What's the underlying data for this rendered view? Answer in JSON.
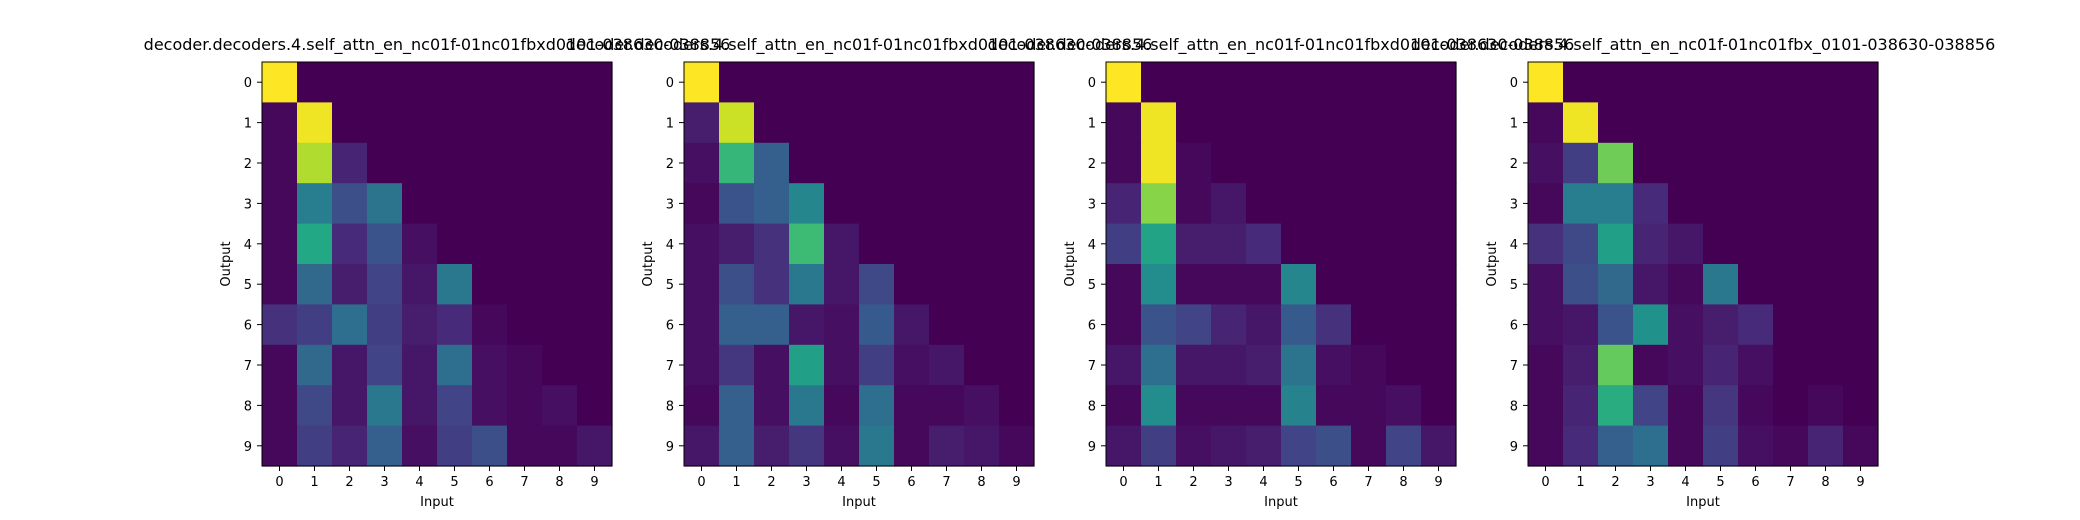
{
  "chart_data": [
    {
      "type": "heatmap",
      "title": "decoder.decoders.4.self_attn_en_nc01f-01nc01fbxd0101-038630-038856",
      "xlabel": "Input",
      "ylabel": "Output",
      "x_ticks": [
        "0",
        "1",
        "2",
        "3",
        "4",
        "5",
        "6",
        "7",
        "8",
        "9"
      ],
      "y_ticks": [
        "0",
        "1",
        "2",
        "3",
        "4",
        "5",
        "6",
        "7",
        "8",
        "9"
      ],
      "colormap": "viridis",
      "vmin": 0,
      "vmax": 1,
      "values": [
        [
          1.0,
          0.0,
          0.0,
          0.0,
          0.0,
          0.0,
          0.0,
          0.0,
          0.0,
          0.0
        ],
        [
          0.02,
          0.98,
          0.0,
          0.0,
          0.0,
          0.0,
          0.0,
          0.0,
          0.0,
          0.0
        ],
        [
          0.02,
          0.88,
          0.1,
          0.0,
          0.0,
          0.0,
          0.0,
          0.0,
          0.0,
          0.0
        ],
        [
          0.02,
          0.42,
          0.24,
          0.38,
          0.0,
          0.0,
          0.0,
          0.0,
          0.0,
          0.0
        ],
        [
          0.02,
          0.6,
          0.12,
          0.26,
          0.04,
          0.0,
          0.0,
          0.0,
          0.0,
          0.0
        ],
        [
          0.02,
          0.34,
          0.08,
          0.2,
          0.06,
          0.4,
          0.0,
          0.0,
          0.0,
          0.0
        ],
        [
          0.14,
          0.18,
          0.36,
          0.18,
          0.08,
          0.12,
          0.02,
          0.0,
          0.0,
          0.0
        ],
        [
          0.02,
          0.34,
          0.06,
          0.2,
          0.06,
          0.36,
          0.04,
          0.02,
          0.0,
          0.0
        ],
        [
          0.02,
          0.22,
          0.06,
          0.4,
          0.06,
          0.2,
          0.04,
          0.02,
          0.04,
          0.0
        ],
        [
          0.02,
          0.18,
          0.1,
          0.3,
          0.04,
          0.18,
          0.24,
          0.02,
          0.02,
          0.06
        ]
      ]
    },
    {
      "type": "heatmap",
      "title": "decoder.decoders.4.self_attn_en_nc01f-01nc01fbxd0101-038630-038856",
      "xlabel": "Input",
      "ylabel": "Output",
      "x_ticks": [
        "0",
        "1",
        "2",
        "3",
        "4",
        "5",
        "6",
        "7",
        "8",
        "9"
      ],
      "y_ticks": [
        "0",
        "1",
        "2",
        "3",
        "4",
        "5",
        "6",
        "7",
        "8",
        "9"
      ],
      "colormap": "viridis",
      "vmin": 0,
      "vmax": 1,
      "values": [
        [
          1.0,
          0.0,
          0.0,
          0.0,
          0.0,
          0.0,
          0.0,
          0.0,
          0.0,
          0.0
        ],
        [
          0.08,
          0.92,
          0.0,
          0.0,
          0.0,
          0.0,
          0.0,
          0.0,
          0.0,
          0.0
        ],
        [
          0.04,
          0.66,
          0.3,
          0.0,
          0.0,
          0.0,
          0.0,
          0.0,
          0.0,
          0.0
        ],
        [
          0.02,
          0.26,
          0.3,
          0.46,
          0.0,
          0.0,
          0.0,
          0.0,
          0.0,
          0.0
        ],
        [
          0.04,
          0.08,
          0.14,
          0.68,
          0.06,
          0.0,
          0.0,
          0.0,
          0.0,
          0.0
        ],
        [
          0.04,
          0.24,
          0.14,
          0.4,
          0.06,
          0.22,
          0.0,
          0.0,
          0.0,
          0.0
        ],
        [
          0.04,
          0.3,
          0.3,
          0.06,
          0.04,
          0.28,
          0.06,
          0.0,
          0.0,
          0.0
        ],
        [
          0.04,
          0.16,
          0.04,
          0.56,
          0.04,
          0.18,
          0.04,
          0.06,
          0.0,
          0.0
        ],
        [
          0.02,
          0.3,
          0.04,
          0.4,
          0.02,
          0.36,
          0.02,
          0.02,
          0.04,
          0.0
        ],
        [
          0.06,
          0.3,
          0.08,
          0.16,
          0.04,
          0.4,
          0.02,
          0.08,
          0.06,
          0.02
        ]
      ]
    },
    {
      "type": "heatmap",
      "title": "decoder.decoders.4.self_attn_en_nc01f-01nc01fbxd0101-038630-038856",
      "xlabel": "Input",
      "ylabel": "Output",
      "x_ticks": [
        "0",
        "1",
        "2",
        "3",
        "4",
        "5",
        "6",
        "7",
        "8",
        "9"
      ],
      "y_ticks": [
        "0",
        "1",
        "2",
        "3",
        "4",
        "5",
        "6",
        "7",
        "8",
        "9"
      ],
      "colormap": "viridis",
      "vmin": 0,
      "vmax": 1,
      "values": [
        [
          1.0,
          0.0,
          0.0,
          0.0,
          0.0,
          0.0,
          0.0,
          0.0,
          0.0,
          0.0
        ],
        [
          0.02,
          0.98,
          0.0,
          0.0,
          0.0,
          0.0,
          0.0,
          0.0,
          0.0,
          0.0
        ],
        [
          0.02,
          0.98,
          0.02,
          0.0,
          0.0,
          0.0,
          0.0,
          0.0,
          0.0,
          0.0
        ],
        [
          0.1,
          0.82,
          0.02,
          0.06,
          0.0,
          0.0,
          0.0,
          0.0,
          0.0,
          0.0
        ],
        [
          0.18,
          0.58,
          0.08,
          0.08,
          0.12,
          0.0,
          0.0,
          0.0,
          0.0,
          0.0
        ],
        [
          0.02,
          0.48,
          0.02,
          0.02,
          0.02,
          0.46,
          0.0,
          0.0,
          0.0,
          0.0
        ],
        [
          0.02,
          0.26,
          0.2,
          0.1,
          0.06,
          0.28,
          0.14,
          0.0,
          0.0,
          0.0
        ],
        [
          0.06,
          0.36,
          0.06,
          0.06,
          0.08,
          0.38,
          0.04,
          0.02,
          0.0,
          0.0
        ],
        [
          0.02,
          0.48,
          0.02,
          0.02,
          0.02,
          0.44,
          0.02,
          0.02,
          0.04,
          0.0
        ],
        [
          0.06,
          0.18,
          0.04,
          0.06,
          0.08,
          0.2,
          0.24,
          0.02,
          0.2,
          0.06
        ]
      ]
    },
    {
      "type": "heatmap",
      "title": "decoder.decoders.4.self_attn_en_nc01f-01nc01fbx_0101-038630-038856",
      "xlabel": "Input",
      "ylabel": "Output",
      "x_ticks": [
        "0",
        "1",
        "2",
        "3",
        "4",
        "5",
        "6",
        "7",
        "8",
        "9"
      ],
      "y_ticks": [
        "0",
        "1",
        "2",
        "3",
        "4",
        "5",
        "6",
        "7",
        "8",
        "9"
      ],
      "colormap": "viridis",
      "vmin": 0,
      "vmax": 1,
      "values": [
        [
          1.0,
          0.0,
          0.0,
          0.0,
          0.0,
          0.0,
          0.0,
          0.0,
          0.0,
          0.0
        ],
        [
          0.02,
          0.98,
          0.0,
          0.0,
          0.0,
          0.0,
          0.0,
          0.0,
          0.0,
          0.0
        ],
        [
          0.04,
          0.18,
          0.78,
          0.0,
          0.0,
          0.0,
          0.0,
          0.0,
          0.0,
          0.0
        ],
        [
          0.02,
          0.42,
          0.42,
          0.12,
          0.0,
          0.0,
          0.0,
          0.0,
          0.0,
          0.0
        ],
        [
          0.14,
          0.22,
          0.56,
          0.1,
          0.06,
          0.0,
          0.0,
          0.0,
          0.0,
          0.0
        ],
        [
          0.04,
          0.24,
          0.34,
          0.06,
          0.02,
          0.4,
          0.0,
          0.0,
          0.0,
          0.0
        ],
        [
          0.04,
          0.06,
          0.26,
          0.5,
          0.04,
          0.08,
          0.12,
          0.0,
          0.0,
          0.0
        ],
        [
          0.02,
          0.08,
          0.76,
          0.02,
          0.04,
          0.1,
          0.04,
          0.0,
          0.0,
          0.0
        ],
        [
          0.02,
          0.1,
          0.62,
          0.2,
          0.02,
          0.16,
          0.02,
          0.0,
          0.02,
          0.0
        ],
        [
          0.02,
          0.12,
          0.3,
          0.36,
          0.02,
          0.18,
          0.04,
          0.02,
          0.1,
          0.02
        ]
      ]
    }
  ]
}
